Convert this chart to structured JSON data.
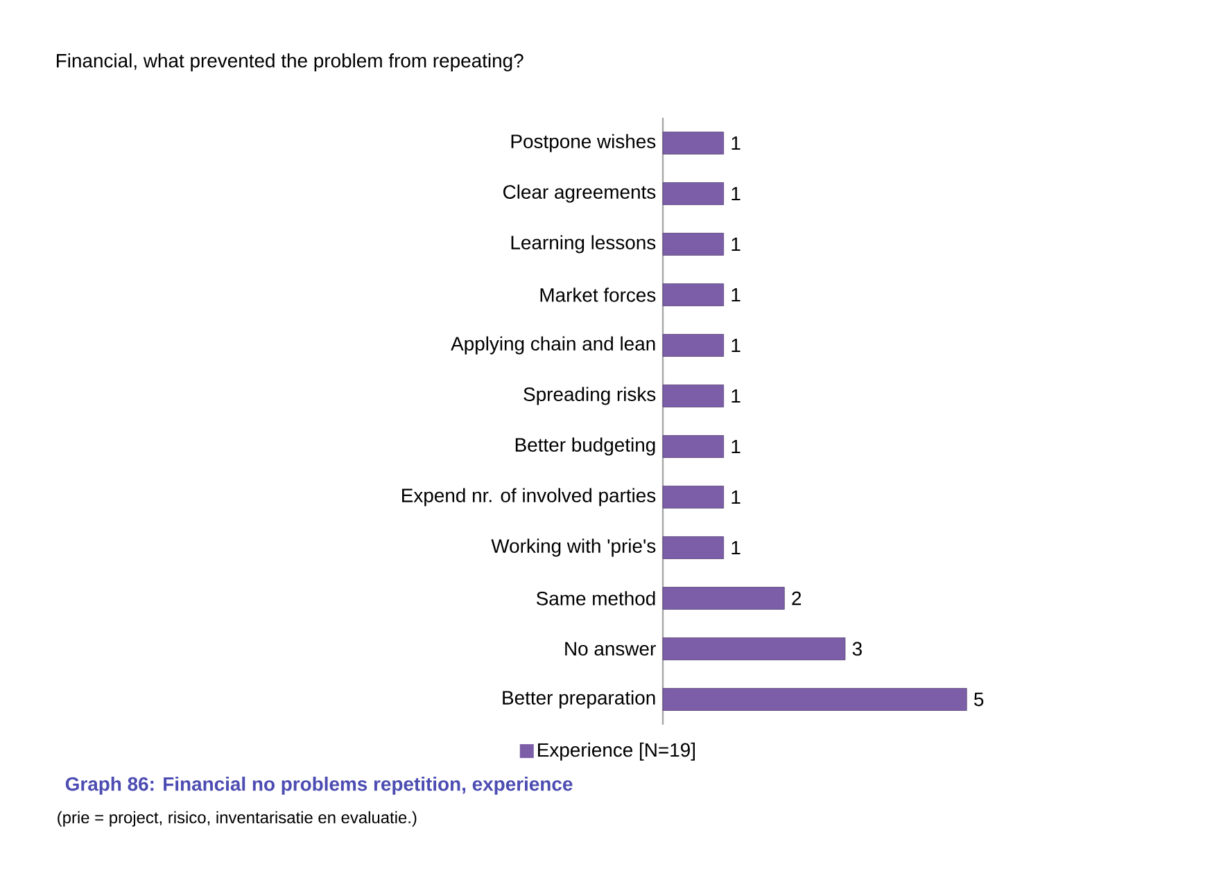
{
  "chart_data": {
    "type": "bar",
    "orientation": "horizontal",
    "title": "Financial, what prevented the problem from repeating?",
    "categories": [
      "Postpone wishes",
      "Clear agreements",
      "Learning lessons",
      "Market forces",
      "Applying chain and lean",
      "Spreading risks",
      "Better budgeting",
      "Expend nr. of involved parties",
      "Working with 'prie's",
      "Same method",
      "No answer",
      "Better preparation"
    ],
    "series": [
      {
        "name": "Experience [N=19]",
        "color": "#7b5ea7",
        "values": [
          1,
          1,
          1,
          1,
          1,
          1,
          1,
          1,
          1,
          2,
          3,
          5
        ]
      }
    ],
    "data_labels": true,
    "legend": "bottom",
    "annotations": [
      "Graph 86: Financial no problems repetition, experience",
      "(prie = project, risico, inventarisatie en evaluatie.)"
    ]
  }
}
